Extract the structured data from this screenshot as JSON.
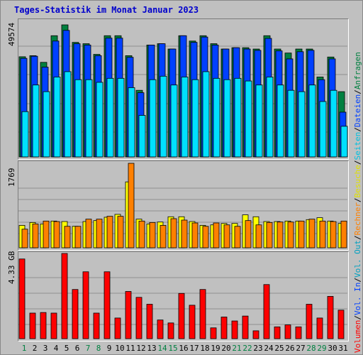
{
  "page_title": "Tages-Statistik im Monat Januar 2023",
  "colors": {
    "anfragen": "#008040",
    "dateien": "#0040ff",
    "seiten": "#00e0ff",
    "besuche": "#ffff00",
    "rechner": "#ff8000",
    "volumen": "#ff0000",
    "weekend_tick": "#008040",
    "gridline": "#909090"
  },
  "legend": {
    "anfragen": "Anfragen",
    "dateien": "Dateien",
    "seiten": "Seiten",
    "besuche": "Besuche",
    "rechner": "Rechner",
    "vol_out": "Vol. Out",
    "vol_in": "Vol. In",
    "volumen": "Volumen",
    "separator": "/"
  },
  "chart_data": [
    {
      "type": "bar",
      "panel": "top",
      "ymax_label": "49574",
      "ylim": [
        0,
        49574
      ],
      "categories": [
        "1",
        "2",
        "3",
        "4",
        "5",
        "6",
        "7",
        "8",
        "9",
        "10",
        "11",
        "12",
        "13",
        "14",
        "15",
        "16",
        "17",
        "18",
        "19",
        "20",
        "21",
        "22",
        "23",
        "24",
        "25",
        "26",
        "27",
        "28",
        "29",
        "30",
        "31"
      ],
      "weekend_days": [
        "1",
        "7",
        "8",
        "14",
        "15",
        "21",
        "22",
        "28",
        "29"
      ],
      "series": [
        {
          "name": "Anfragen",
          "values": [
            37600,
            38000,
            35500,
            45500,
            49574,
            43000,
            42500,
            38500,
            45500,
            45500,
            38000,
            25000,
            42000,
            42500,
            40500,
            45500,
            43500,
            45500,
            42500,
            40500,
            41000,
            41000,
            40500,
            45500,
            40500,
            39000,
            40500,
            40500,
            30000,
            37500,
            24500
          ]
        },
        {
          "name": "Dateien",
          "values": [
            37000,
            37800,
            33700,
            43500,
            47500,
            42500,
            42000,
            38000,
            44600,
            44600,
            37400,
            24100,
            42000,
            42500,
            40500,
            45500,
            43000,
            45000,
            42000,
            40500,
            41000,
            40500,
            40000,
            44500,
            39800,
            36800,
            39500,
            40000,
            29000,
            36800,
            16800
          ]
        },
        {
          "name": "Seiten",
          "values": [
            17000,
            27000,
            24500,
            30000,
            32000,
            29000,
            29000,
            28000,
            29500,
            29500,
            26000,
            15600,
            29000,
            30300,
            27000,
            30000,
            29000,
            32000,
            29500,
            29000,
            29500,
            28500,
            27000,
            30000,
            27000,
            25000,
            24500,
            27000,
            20800,
            25000,
            11500
          ]
        }
      ]
    },
    {
      "type": "bar",
      "panel": "middle",
      "ymax_label": "1769",
      "ylim": [
        0,
        1769
      ],
      "categories": [
        "1",
        "2",
        "3",
        "4",
        "5",
        "6",
        "7",
        "8",
        "9",
        "10",
        "11",
        "12",
        "13",
        "14",
        "15",
        "16",
        "17",
        "18",
        "19",
        "20",
        "21",
        "22",
        "23",
        "24",
        "25",
        "26",
        "27",
        "28",
        "29",
        "30",
        "31"
      ],
      "series": [
        {
          "name": "Besuche",
          "values": [
            470,
            530,
            500,
            560,
            550,
            450,
            550,
            570,
            640,
            700,
            1380,
            600,
            500,
            540,
            650,
            650,
            550,
            470,
            480,
            510,
            510,
            690,
            650,
            550,
            550,
            560,
            560,
            590,
            630,
            560,
            510
          ]
        },
        {
          "name": "Rechner",
          "values": [
            390,
            500,
            560,
            550,
            450,
            450,
            600,
            600,
            660,
            660,
            1769,
            560,
            530,
            470,
            610,
            580,
            520,
            450,
            520,
            480,
            450,
            570,
            480,
            530,
            540,
            540,
            560,
            600,
            560,
            550,
            560
          ]
        }
      ]
    },
    {
      "type": "bar",
      "panel": "bottom",
      "ymax_label": "4.33 GB",
      "ylim": [
        0,
        4.33
      ],
      "unit": "GB",
      "categories": [
        "1",
        "2",
        "3",
        "4",
        "5",
        "6",
        "7",
        "8",
        "9",
        "10",
        "11",
        "12",
        "13",
        "14",
        "15",
        "16",
        "17",
        "18",
        "19",
        "20",
        "21",
        "22",
        "23",
        "24",
        "25",
        "26",
        "27",
        "28",
        "29",
        "30",
        "31"
      ],
      "series": [
        {
          "name": "Volumen",
          "values": [
            4.05,
            1.3,
            1.33,
            1.3,
            4.33,
            2.5,
            3.4,
            1.3,
            3.4,
            1.05,
            2.4,
            2.1,
            1.75,
            0.95,
            0.8,
            2.3,
            1.7,
            2.5,
            0.55,
            1.1,
            0.9,
            1.15,
            0.4,
            2.75,
            0.6,
            0.7,
            0.6,
            1.75,
            1.05,
            2.15,
            1.45
          ]
        }
      ]
    }
  ]
}
